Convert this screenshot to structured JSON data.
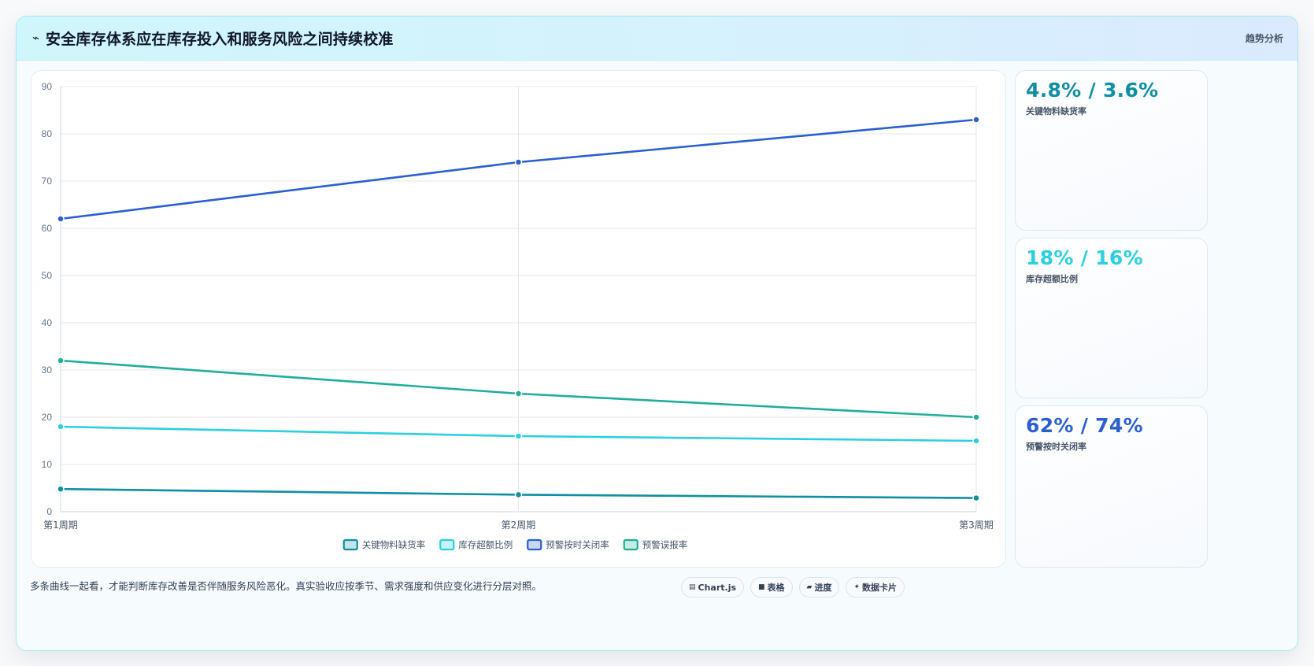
{
  "header": {
    "icon": "trend-icon",
    "title": "安全库存体系应在库存投入和服务风险之间持续校准",
    "tag": "趋势分析"
  },
  "chart_data": {
    "type": "line",
    "categories": [
      "第1周期",
      "第2周期",
      "第3周期"
    ],
    "ylim": [
      0,
      90
    ],
    "yticks": [
      0,
      10,
      20,
      30,
      40,
      50,
      60,
      70,
      80,
      90
    ],
    "grid": true,
    "legend_position": "bottom",
    "series": [
      {
        "name": "关键物料缺货率",
        "values": [
          4.8,
          3.6,
          2.9
        ],
        "color": "#0e8fa3"
      },
      {
        "name": "库存超额比例",
        "values": [
          18,
          16,
          15
        ],
        "color": "#2ccfe0"
      },
      {
        "name": "预警按时关闭率",
        "values": [
          62,
          74,
          83
        ],
        "color": "#2a5fcf"
      },
      {
        "name": "预警误报率",
        "values": [
          32,
          25,
          20
        ],
        "color": "#1fae98"
      }
    ]
  },
  "side_cards": [
    {
      "value": "4.8% / 3.6%",
      "label": "关键物料缺货率",
      "color": "#0e8fa3"
    },
    {
      "value": "18% / 16%",
      "label": "库存超额比例",
      "color": "#2ccfe0"
    },
    {
      "value": "62% / 74%",
      "label": "预警按时关闭率",
      "color": "#2a5fcf"
    }
  ],
  "footer": {
    "note": "多条曲线一起看，才能判断库存改善是否伴随服务风险恶化。真实验收应按季节、需求强度和供应变化进行分层对照。",
    "pills": [
      {
        "icon": "chart-icon",
        "glyph": "▤",
        "label": "Chart.js"
      },
      {
        "icon": "table-icon",
        "glyph": "■",
        "label": "表格"
      },
      {
        "icon": "progress-icon",
        "glyph": "▰",
        "label": "进度"
      },
      {
        "icon": "card-icon",
        "glyph": "✦",
        "label": "数据卡片"
      }
    ]
  }
}
